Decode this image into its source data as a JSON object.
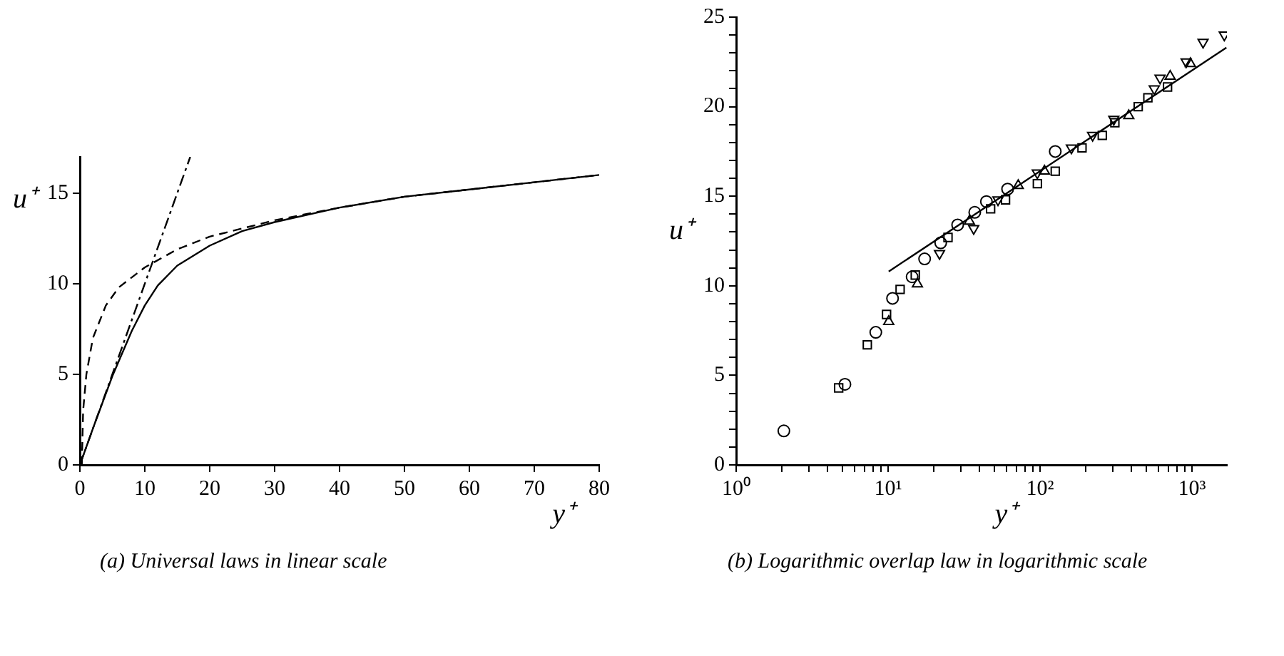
{
  "chart_data": [
    {
      "type": "line",
      "xlabel": "y⁺",
      "ylabel": "u⁺",
      "annotations": [
        "(a) Universal laws in linear scale"
      ],
      "xlim": [
        0,
        80
      ],
      "xticks": [
        0,
        10,
        20,
        30,
        40,
        50,
        60,
        70,
        80
      ],
      "ylim": [
        0,
        17
      ],
      "yticks": [
        0,
        5,
        10,
        15
      ],
      "marker": "none",
      "series": [
        {
          "color": "#000000",
          "line_style": "solid",
          "x": [
            0,
            2,
            5,
            8,
            10,
            12,
            15,
            20,
            25,
            30,
            40,
            50,
            60,
            70,
            80
          ],
          "values": [
            0,
            2,
            4.9,
            7.4,
            8.8,
            9.9,
            11,
            12.1,
            12.9,
            13.4,
            14.2,
            14.8,
            15.2,
            15.6,
            16
          ]
        },
        {
          "color": "#000000",
          "line_style": "dashed",
          "x": [
            0.3,
            0.5,
            1,
            2,
            4,
            6,
            10,
            15,
            20,
            30,
            40,
            50,
            60,
            70,
            80
          ],
          "values": [
            0,
            3,
            5,
            7,
            8.8,
            9.8,
            10.9,
            11.9,
            12.6,
            13.5,
            14.2,
            14.8,
            15.2,
            15.6,
            16
          ]
        },
        {
          "color": "#000000",
          "line_style": "dashdot",
          "x": [
            0,
            17
          ],
          "values": [
            0,
            17
          ]
        }
      ]
    },
    {
      "type": "scatter",
      "xlabel": "y⁺",
      "ylabel": "u⁺",
      "annotations": [
        "(b) Logarithmic overlap law in logarithmic scale"
      ],
      "log": "x",
      "xlim": [
        1,
        1700
      ],
      "xticks": [
        {
          "value": 1,
          "label": "10⁰"
        },
        {
          "value": 2,
          "label": null
        },
        {
          "value": 3,
          "label": null
        },
        {
          "value": 4,
          "label": null
        },
        {
          "value": 5,
          "label": null
        },
        {
          "value": 6,
          "label": null
        },
        {
          "value": 7,
          "label": null
        },
        {
          "value": 8,
          "label": null
        },
        {
          "value": 9,
          "label": null
        },
        {
          "value": 10,
          "label": "10¹"
        },
        {
          "value": 20,
          "label": null
        },
        {
          "value": 30,
          "label": null
        },
        {
          "value": 40,
          "label": null
        },
        {
          "value": 50,
          "label": null
        },
        {
          "value": 60,
          "label": null
        },
        {
          "value": 70,
          "label": null
        },
        {
          "value": 80,
          "label": null
        },
        {
          "value": 90,
          "label": null
        },
        {
          "value": 100,
          "label": "10²"
        },
        {
          "value": 200,
          "label": null
        },
        {
          "value": 300,
          "label": null
        },
        {
          "value": 400,
          "label": null
        },
        {
          "value": 500,
          "label": null
        },
        {
          "value": 600,
          "label": null
        },
        {
          "value": 700,
          "label": null
        },
        {
          "value": 800,
          "label": null
        },
        {
          "value": 900,
          "label": null
        },
        {
          "value": 1000,
          "label": "10³"
        }
      ],
      "ylim": [
        0,
        25
      ],
      "yticks": [
        0,
        {
          "value": 1,
          "label": null
        },
        {
          "value": 2,
          "label": null
        },
        {
          "value": 3,
          "label": null
        },
        {
          "value": 4,
          "label": null
        },
        5,
        {
          "value": 6,
          "label": null
        },
        {
          "value": 7,
          "label": null
        },
        {
          "value": 8,
          "label": null
        },
        {
          "value": 9,
          "label": null
        },
        10,
        {
          "value": 11,
          "label": null
        },
        {
          "value": 12,
          "label": null
        },
        {
          "value": 13,
          "label": null
        },
        {
          "value": 14,
          "label": null
        },
        15,
        {
          "value": 16,
          "label": null
        },
        {
          "value": 17,
          "label": null
        },
        {
          "value": 18,
          "label": null
        },
        {
          "value": 19,
          "label": null
        },
        20,
        {
          "value": 21,
          "label": null
        },
        {
          "value": 22,
          "label": null
        },
        {
          "value": 23,
          "label": null
        },
        {
          "value": 24,
          "label": null
        },
        25
      ],
      "series": [
        {
          "color": "#000000",
          "marker": "circle",
          "x": [
            2.06,
            5.2,
            8.3,
            10.7,
            14.4,
            17.4,
            22.2,
            28.7,
            37.2,
            44.4,
            61.2,
            126
          ],
          "values": [
            1.9,
            4.5,
            7.4,
            9.3,
            10.5,
            11.5,
            12.4,
            13.4,
            14.1,
            14.7,
            15.4,
            17.5
          ]
        },
        {
          "color": "#000000",
          "marker": "square",
          "x": [
            4.73,
            7.3,
            9.77,
            12,
            15.1,
            24.8,
            47.3,
            59.3,
            96.1,
            126,
            189,
            257,
            311,
            443,
            513,
            691
          ],
          "values": [
            4.3,
            6.7,
            8.4,
            9.8,
            10.6,
            12.7,
            14.3,
            14.8,
            15.7,
            16.4,
            17.7,
            18.4,
            19.1,
            20,
            20.5,
            21.1
          ]
        },
        {
          "color": "#000000",
          "marker": "triangle",
          "x": [
            10.1,
            15.6,
            34.3,
            71.9,
            107,
            384,
            719,
            977
          ],
          "values": [
            8,
            10.1,
            13.6,
            15.6,
            16.4,
            19.5,
            21.7,
            22.4
          ]
        },
        {
          "color": "#000000",
          "marker": "triangle_down",
          "x": [
            21.8,
            36.6,
            52.9,
            96,
            161,
            222,
            306,
            565,
            617,
            916,
            1184,
            1633
          ],
          "values": [
            11.8,
            13.2,
            14.8,
            16.3,
            17.7,
            18.4,
            19.3,
            21,
            21.6,
            22.5,
            23.6,
            24
          ]
        },
        {
          "type": "line",
          "color": "#000000",
          "marker": "none",
          "line_style": "solid",
          "x": [
            10.1,
            1687
          ],
          "values": [
            10.8,
            23.3
          ]
        }
      ]
    }
  ]
}
